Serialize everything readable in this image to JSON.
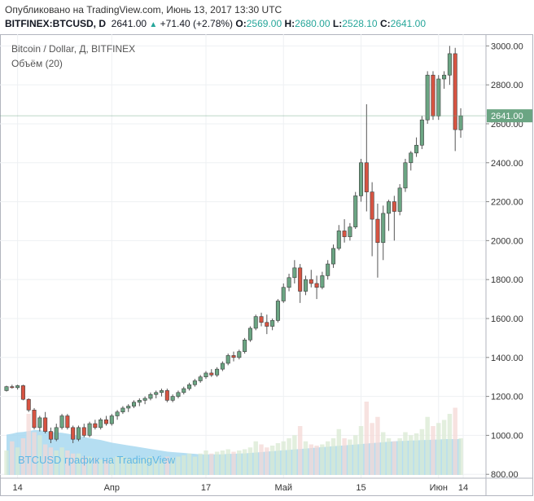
{
  "header": {
    "published": "Опубликовано на TradingView.com, Июнь 13, 2017 13:30 UTC",
    "symbol": "BITFINEX:BTCUSD, D",
    "last": "2641.00",
    "change": "+71.40 (+2.78%)",
    "o_label": "O:",
    "o": "2569.00",
    "h_label": "H:",
    "h": "2680.00",
    "l_label": "L:",
    "l": "2528.10",
    "c_label": "C:",
    "c": "2641.00"
  },
  "legend": {
    "title": "Bitcoin / Dollar, Д, BITFINEX",
    "volume": "Объём (20)"
  },
  "watermark": "BTCUSD график на TradingView",
  "price_tag": "2641.00",
  "colors": {
    "up": "#6ba583",
    "down": "#d75442",
    "wick": "#555555",
    "vol_up": "#d9ead3",
    "vol_down": "#f4d8d5",
    "vol_ma": "#a8d8f0",
    "watermark": "#5fb7e5",
    "price_tag": "#6ba583"
  },
  "chart_data": {
    "type": "candlestick",
    "y_axis": {
      "range": [
        780,
        3060
      ],
      "ticks": [
        800,
        1000,
        1200,
        1400,
        1600,
        1800,
        2000,
        2200,
        2400,
        2600,
        2800,
        3000
      ]
    },
    "x_axis_labels": [
      "14",
      "Апр",
      "17",
      "Май",
      "15",
      "Июн",
      "14"
    ],
    "last_price": 2641.0,
    "candles": [
      [
        1230,
        1255,
        1225,
        1250
      ],
      [
        1250,
        1260,
        1240,
        1245
      ],
      [
        1245,
        1260,
        1235,
        1255
      ],
      [
        1255,
        1260,
        1180,
        1185
      ],
      [
        1185,
        1190,
        1120,
        1130
      ],
      [
        1130,
        1140,
        1030,
        1040
      ],
      [
        1040,
        1100,
        1020,
        1090
      ],
      [
        1090,
        1120,
        1010,
        1020
      ],
      [
        1020,
        1040,
        960,
        980
      ],
      [
        980,
        1060,
        970,
        1040
      ],
      [
        1040,
        1110,
        1030,
        1100
      ],
      [
        1100,
        1110,
        1030,
        1040
      ],
      [
        1040,
        1050,
        960,
        980
      ],
      [
        980,
        1050,
        970,
        1040
      ],
      [
        1040,
        1060,
        990,
        1000
      ],
      [
        1000,
        1070,
        990,
        1060
      ],
      [
        1060,
        1080,
        1030,
        1040
      ],
      [
        1040,
        1090,
        1030,
        1080
      ],
      [
        1080,
        1100,
        1050,
        1060
      ],
      [
        1060,
        1110,
        1050,
        1100
      ],
      [
        1100,
        1130,
        1080,
        1120
      ],
      [
        1120,
        1150,
        1110,
        1140
      ],
      [
        1140,
        1160,
        1120,
        1150
      ],
      [
        1150,
        1180,
        1140,
        1170
      ],
      [
        1170,
        1190,
        1150,
        1180
      ],
      [
        1180,
        1200,
        1160,
        1190
      ],
      [
        1190,
        1220,
        1180,
        1210
      ],
      [
        1210,
        1230,
        1190,
        1220
      ],
      [
        1220,
        1240,
        1200,
        1230
      ],
      [
        1230,
        1240,
        1170,
        1180
      ],
      [
        1180,
        1210,
        1170,
        1200
      ],
      [
        1200,
        1230,
        1190,
        1220
      ],
      [
        1220,
        1250,
        1210,
        1240
      ],
      [
        1240,
        1270,
        1230,
        1260
      ],
      [
        1260,
        1290,
        1250,
        1280
      ],
      [
        1280,
        1310,
        1270,
        1300
      ],
      [
        1300,
        1330,
        1290,
        1320
      ],
      [
        1320,
        1340,
        1300,
        1310
      ],
      [
        1310,
        1350,
        1300,
        1340
      ],
      [
        1340,
        1380,
        1330,
        1370
      ],
      [
        1370,
        1420,
        1360,
        1410
      ],
      [
        1410,
        1430,
        1380,
        1400
      ],
      [
        1400,
        1440,
        1390,
        1430
      ],
      [
        1430,
        1500,
        1420,
        1490
      ],
      [
        1490,
        1560,
        1480,
        1550
      ],
      [
        1550,
        1620,
        1540,
        1610
      ],
      [
        1610,
        1630,
        1560,
        1580
      ],
      [
        1580,
        1620,
        1520,
        1560
      ],
      [
        1560,
        1600,
        1540,
        1590
      ],
      [
        1590,
        1700,
        1580,
        1690
      ],
      [
        1690,
        1780,
        1680,
        1760
      ],
      [
        1760,
        1830,
        1740,
        1810
      ],
      [
        1810,
        1900,
        1780,
        1860
      ],
      [
        1860,
        1880,
        1680,
        1740
      ],
      [
        1740,
        1820,
        1720,
        1800
      ],
      [
        1800,
        1850,
        1760,
        1780
      ],
      [
        1780,
        1820,
        1700,
        1760
      ],
      [
        1760,
        1840,
        1750,
        1820
      ],
      [
        1820,
        1900,
        1800,
        1880
      ],
      [
        1880,
        1980,
        1860,
        1960
      ],
      [
        1960,
        2080,
        1950,
        2050
      ],
      [
        2050,
        2110,
        1990,
        2020
      ],
      [
        2020,
        2090,
        2000,
        2070
      ],
      [
        2070,
        2250,
        2060,
        2230
      ],
      [
        2230,
        2420,
        2200,
        2400
      ],
      [
        2400,
        2700,
        2150,
        2250
      ],
      [
        2250,
        2300,
        1920,
        2110
      ],
      [
        2110,
        2190,
        1810,
        1990
      ],
      [
        1990,
        2180,
        1900,
        2140
      ],
      [
        2140,
        2210,
        2050,
        2200
      ],
      [
        2200,
        2230,
        2000,
        2150
      ],
      [
        2150,
        2290,
        2130,
        2270
      ],
      [
        2270,
        2420,
        2250,
        2400
      ],
      [
        2400,
        2460,
        2360,
        2450
      ],
      [
        2450,
        2530,
        2430,
        2490
      ],
      [
        2490,
        2640,
        2470,
        2620
      ],
      [
        2620,
        2870,
        2600,
        2850
      ],
      [
        2850,
        2870,
        2620,
        2640
      ],
      [
        2640,
        2850,
        2620,
        2830
      ],
      [
        2830,
        2870,
        2780,
        2850
      ],
      [
        2850,
        3000,
        2800,
        2960
      ],
      [
        2960,
        2990,
        2460,
        2570
      ],
      [
        2569,
        2680,
        2528.1,
        2641
      ]
    ],
    "volume_bars": [
      40,
      55,
      45,
      60,
      100,
      70,
      65,
      50,
      45,
      40,
      45,
      40,
      35,
      35,
      30,
      30,
      28,
      25,
      25,
      28,
      30,
      30,
      28,
      25,
      25,
      28,
      30,
      25,
      25,
      30,
      28,
      30,
      32,
      35,
      30,
      35,
      40,
      35,
      38,
      40,
      42,
      38,
      40,
      42,
      45,
      55,
      50,
      45,
      48,
      52,
      55,
      60,
      65,
      80,
      55,
      50,
      48,
      50,
      55,
      60,
      75,
      60,
      58,
      65,
      80,
      120,
      85,
      95,
      70,
      60,
      55,
      60,
      70,
      65,
      68,
      75,
      95,
      80,
      85,
      90,
      100,
      110,
      60
    ],
    "volume_ma": [
      90,
      92,
      95,
      96,
      98,
      100,
      100,
      98,
      96,
      95,
      94,
      92,
      90,
      88,
      85,
      82,
      80,
      78,
      75,
      72,
      70,
      68,
      66,
      64,
      62,
      60,
      58,
      56,
      54,
      52,
      51,
      50,
      49,
      48,
      47,
      46,
      46,
      46,
      46,
      46,
      47,
      47,
      48,
      48,
      49,
      50,
      51,
      52,
      53,
      54,
      55,
      56,
      57,
      58,
      59,
      60,
      61,
      62,
      63,
      64,
      65,
      66,
      67,
      68,
      69,
      70,
      71,
      72,
      73,
      74,
      75,
      76,
      76,
      77,
      77,
      78,
      78,
      79,
      79,
      80,
      80,
      80,
      80
    ]
  }
}
